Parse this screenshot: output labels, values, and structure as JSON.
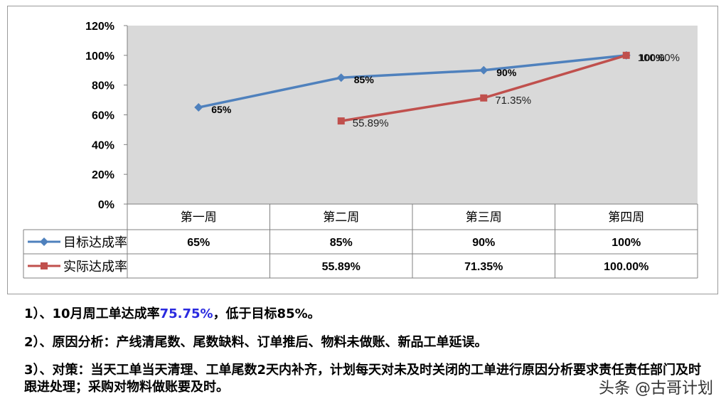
{
  "chart_data": {
    "type": "line",
    "categories": [
      "第一周",
      "第二周",
      "第三周",
      "第四周"
    ],
    "yticks": [
      "0%",
      "20%",
      "40%",
      "60%",
      "80%",
      "100%",
      "120%"
    ],
    "ylim": [
      0,
      120
    ],
    "grid": false,
    "series": [
      {
        "name": "目标达成率",
        "color": "#4f81bd",
        "marker": "diamond",
        "values": [
          65,
          85,
          90,
          100
        ],
        "labels": [
          "65%",
          "85%",
          "90%",
          "100%"
        ],
        "table": [
          "65%",
          "85%",
          "90%",
          "100%"
        ]
      },
      {
        "name": "实际达成率",
        "color": "#c0504d",
        "marker": "square",
        "values": [
          null,
          55.89,
          71.35,
          100
        ],
        "labels": [
          "",
          "55.89%",
          "71.35%",
          "100.00%"
        ],
        "table": [
          "",
          "55.89%",
          "71.35%",
          "100.00%"
        ]
      }
    ],
    "plot_bg": "#d9d9d9"
  },
  "notes": {
    "n1_prefix": "1）、10月周工单达成率",
    "n1_highlight": "75.75%",
    "n1_suffix": "，低于目标85%。",
    "n2": "2）、原因分析：产线清尾数、尾数缺料、订单推后、物料未做账、新品工单延误。",
    "n3": "3）、对策：当天工单当天清理、工单尾数2天内补齐，计划每天对未及时关闭的工单进行原因分析要求责任责任部门及时跟进处理；采购对物料做账要及时。"
  },
  "watermark": "头条 @古哥计划"
}
